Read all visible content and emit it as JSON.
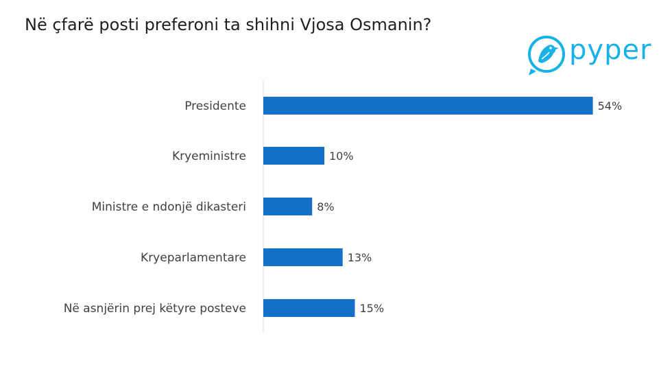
{
  "title": "Në çfarë posti preferoni ta shihni Vjosa Osmanin?",
  "logo": {
    "text": "pyper",
    "icon": "bird-icon",
    "color": "#19b2e6"
  },
  "chart_data": {
    "type": "bar",
    "orientation": "horizontal",
    "categories": [
      "Presidente",
      "Kryeministre",
      "Ministre e ndonjë dikasteri",
      "Kryeparlamentare",
      "Në asnjërin prej këtyre posteve"
    ],
    "values": [
      54,
      10,
      8,
      13,
      15
    ],
    "value_labels": [
      "54%",
      "10%",
      "8%",
      "13%",
      "15%"
    ],
    "bar_color": "#1570c7",
    "grid": false,
    "legend": "none"
  }
}
